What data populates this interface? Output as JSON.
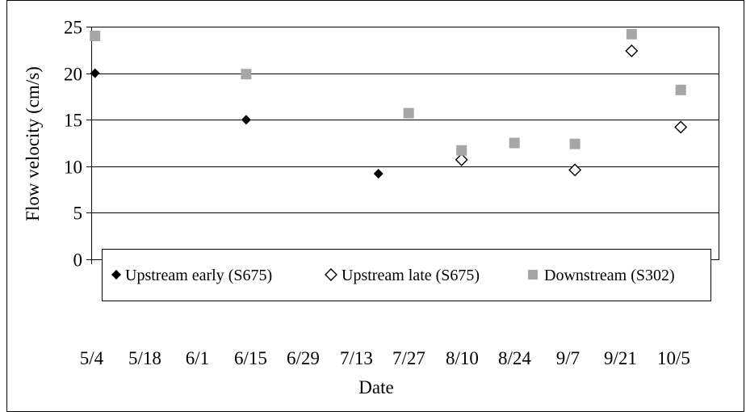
{
  "chart_data": {
    "type": "scatter",
    "xlabel": "Date",
    "ylabel": "Flow velocity (cm/s)",
    "x_tick_labels": [
      "5/4",
      "5/18",
      "6/1",
      "6/15",
      "6/29",
      "7/13",
      "7/27",
      "8/10",
      "8/24",
      "9/7",
      "9/21",
      "10/5"
    ],
    "xlim": [
      "5/4",
      "10/17"
    ],
    "ylim": [
      0,
      25
    ],
    "y_ticks": [
      0,
      5,
      10,
      15,
      20,
      25
    ],
    "grid": "horizontal",
    "legend": "inside, lower-center",
    "series": [
      {
        "name": "Upstream early (S675)",
        "marker": "diamond-filled",
        "color": "#000000",
        "points": [
          {
            "x": "5/5",
            "y": 20.0
          },
          {
            "x": "6/14",
            "y": 15.0
          },
          {
            "x": "7/19",
            "y": 9.2
          },
          {
            "x": "7/27",
            "y": 15.7
          }
        ]
      },
      {
        "name": "Upstream late (S675)",
        "marker": "diamond-open",
        "color": "#000000",
        "points": [
          {
            "x": "8/10",
            "y": 10.7
          },
          {
            "x": "9/9",
            "y": 9.6
          },
          {
            "x": "9/24",
            "y": 22.4
          },
          {
            "x": "10/7",
            "y": 14.2
          }
        ]
      },
      {
        "name": "Downstream (S302)",
        "marker": "square",
        "color": "#a6a6a6",
        "points": [
          {
            "x": "5/5",
            "y": 24.0
          },
          {
            "x": "6/14",
            "y": 19.9
          },
          {
            "x": "7/27",
            "y": 15.7
          },
          {
            "x": "8/10",
            "y": 11.7
          },
          {
            "x": "8/24",
            "y": 12.5
          },
          {
            "x": "9/9",
            "y": 12.4
          },
          {
            "x": "9/24",
            "y": 24.2
          },
          {
            "x": "10/7",
            "y": 18.2
          }
        ]
      }
    ]
  }
}
